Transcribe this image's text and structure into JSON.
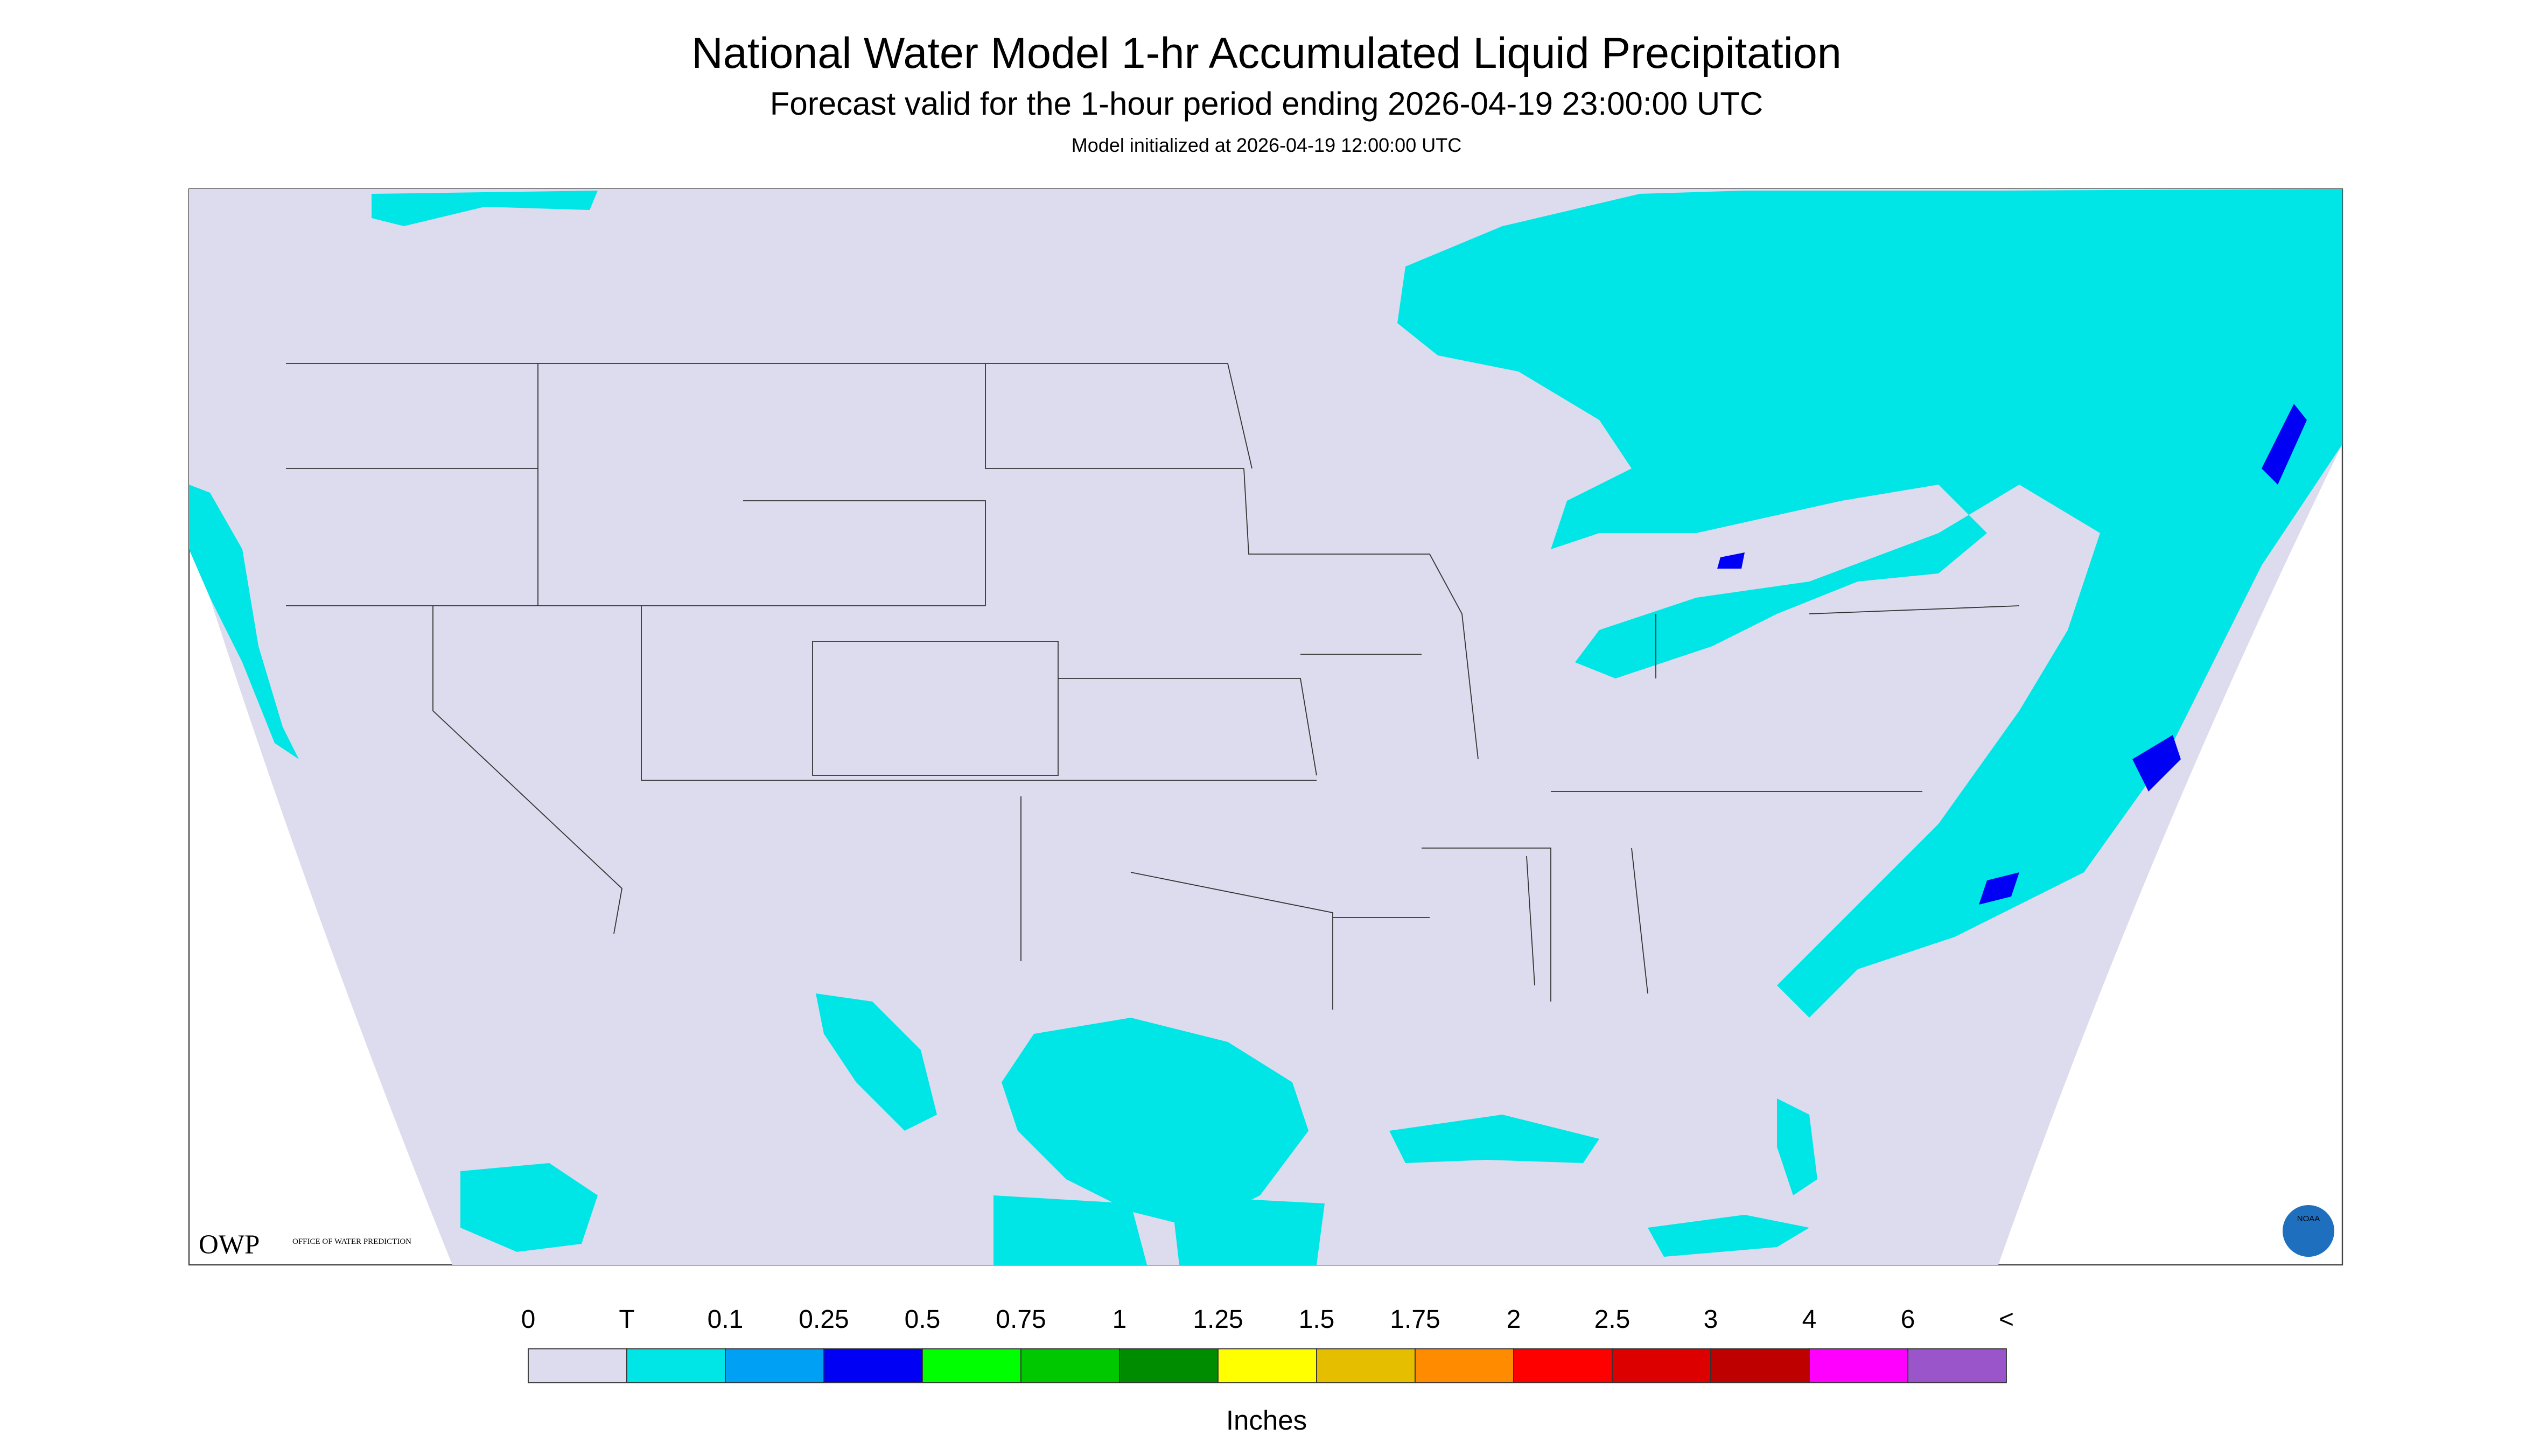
{
  "header": {
    "title": "National Water Model 1-hr Accumulated Liquid Precipitation",
    "subtitle": "Forecast valid for the 1-hour period ending 2026-04-19 23:00:00 UTC",
    "init": "Model initialized at 2026-04-19 12:00:00 UTC"
  },
  "logos": {
    "owp": "OWP",
    "owp_full": "OFFICE OF WATER PREDICTION",
    "noaa": "NOAA"
  },
  "legend": {
    "labels": [
      "0",
      "T",
      "0.1",
      "0.25",
      "0.5",
      "0.75",
      "1",
      "1.25",
      "1.5",
      "1.75",
      "2",
      "2.5",
      "3",
      "4",
      "6",
      "<"
    ],
    "colors": [
      "#dcdcee",
      "#00e6e6",
      "#00a0f5",
      "#0000f5",
      "#00ff00",
      "#00c800",
      "#008c00",
      "#ffff00",
      "#e6be00",
      "#ff8c00",
      "#ff0000",
      "#dc0000",
      "#be0000",
      "#ff00ff",
      "#9955c9"
    ],
    "units": "Inches"
  }
}
